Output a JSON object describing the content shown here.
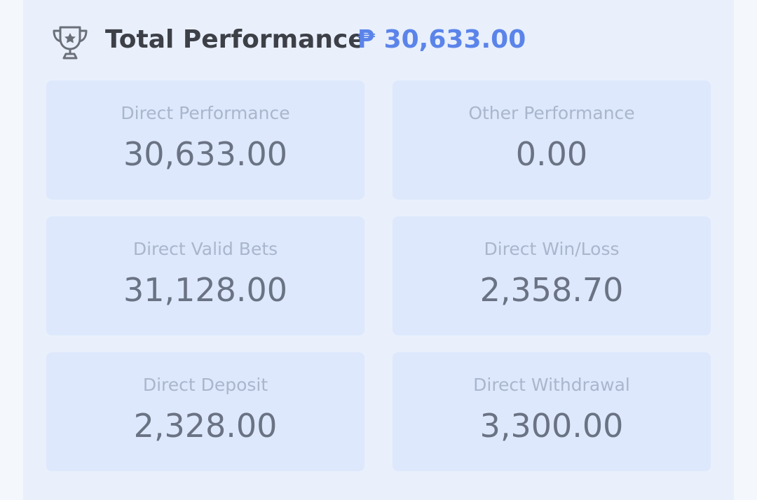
{
  "header": {
    "title": "Total Performance",
    "amount": "₱ 30,633.00"
  },
  "cards": [
    {
      "label": "Direct Performance",
      "value": "30,633.00"
    },
    {
      "label": "Other Performance",
      "value": "0.00"
    },
    {
      "label": "Direct Valid Bets",
      "value": "31,128.00"
    },
    {
      "label": "Direct Win/Loss",
      "value": "2,358.70"
    },
    {
      "label": "Direct Deposit",
      "value": "2,328.00"
    },
    {
      "label": "Direct Withdrawal",
      "value": "3,300.00"
    }
  ]
}
